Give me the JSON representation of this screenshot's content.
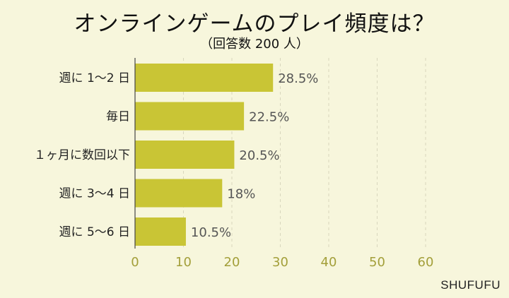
{
  "title": "オンラインゲームのプレイ頻度は？",
  "subtitle": "（回答数 200 人）",
  "brand": "SHUFUFU",
  "colors": {
    "bar": "#c9c535",
    "background": "#f7f6dc",
    "tick": "#a39f3a",
    "grid": "#d8d6bd"
  },
  "chart_data": {
    "type": "bar",
    "orientation": "horizontal",
    "categories": [
      "週に 1〜2 日",
      "毎日",
      "１ヶ月に数回以下",
      "週に 3〜4 日",
      "週に 5〜6 日"
    ],
    "values": [
      28.5,
      22.5,
      20.5,
      18,
      10.5
    ],
    "value_labels": [
      "28.5%",
      "22.5%",
      "20.5%",
      "18%",
      "10.5%"
    ],
    "xlim": [
      0,
      60
    ],
    "xticks": [
      "0",
      "10",
      "20",
      "30",
      "40",
      "50",
      "60"
    ],
    "grid": true,
    "xlabel": "",
    "ylabel": ""
  }
}
